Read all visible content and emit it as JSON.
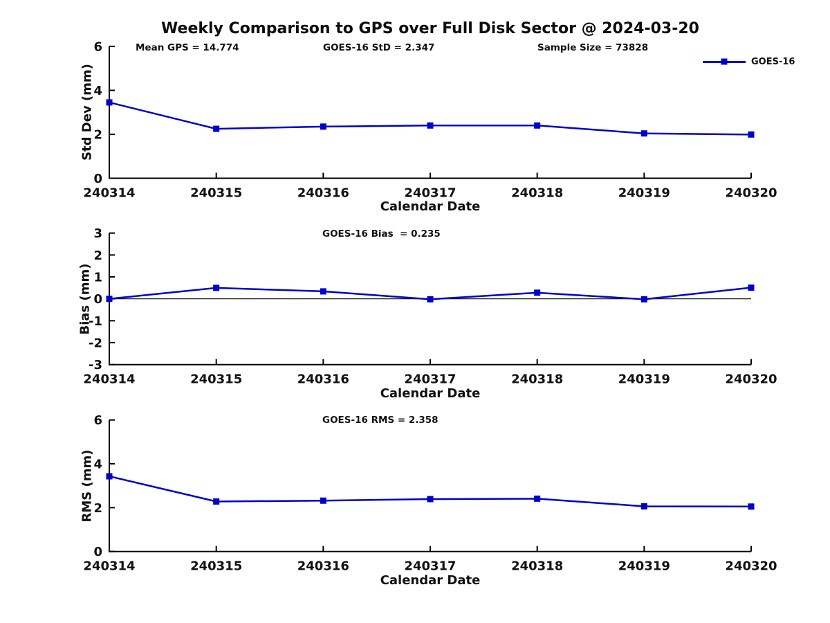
{
  "title": "Weekly Comparison to GPS over Full Disk Sector @ 2024-03-20",
  "annotations": {
    "mean_gps": "Mean GPS = 14.774",
    "goes16_std": "GOES-16 StD = 2.347",
    "sample_size": "Sample Size = 73828"
  },
  "legend": {
    "label": "GOES-16",
    "marker": "filled-square",
    "position": "top-right"
  },
  "colors": {
    "series": "#0000cc",
    "axis": "#000000",
    "text": "#111111",
    "background": "#ffffff"
  },
  "chart_data": [
    {
      "type": "line",
      "title": "",
      "xlabel": "Calendar Date",
      "ylabel": "Std Dev (mm)",
      "categories": [
        "240314",
        "240315",
        "240316",
        "240317",
        "240318",
        "240319",
        "240320"
      ],
      "series": [
        {
          "name": "GOES-16",
          "values": [
            3.45,
            2.25,
            2.35,
            2.4,
            2.4,
            2.04,
            1.99
          ]
        }
      ],
      "ylim": [
        0,
        6
      ],
      "yticks": [
        0,
        2,
        4,
        6
      ],
      "grid": false,
      "zero_line": false
    },
    {
      "type": "line",
      "title": "GOES-16 Bias  = 0.235",
      "xlabel": "Calendar Date",
      "ylabel": "Bias (mm)",
      "categories": [
        "240314",
        "240315",
        "240316",
        "240317",
        "240318",
        "240319",
        "240320"
      ],
      "series": [
        {
          "name": "GOES-16",
          "values": [
            0.0,
            0.5,
            0.34,
            -0.02,
            0.28,
            -0.02,
            0.51
          ]
        }
      ],
      "ylim": [
        -3,
        3
      ],
      "yticks": [
        -3,
        -2,
        -1,
        0,
        1,
        2,
        3
      ],
      "grid": false,
      "zero_line": true
    },
    {
      "type": "line",
      "title": "GOES-16 RMS = 2.358",
      "xlabel": "Calendar Date",
      "ylabel": "RMS (mm)",
      "categories": [
        "240314",
        "240315",
        "240316",
        "240317",
        "240318",
        "240319",
        "240320"
      ],
      "series": [
        {
          "name": "GOES-16",
          "values": [
            3.43,
            2.28,
            2.32,
            2.39,
            2.41,
            2.06,
            2.05
          ]
        }
      ],
      "ylim": [
        0,
        6
      ],
      "yticks": [
        0,
        2,
        4,
        6
      ],
      "grid": false,
      "zero_line": false
    }
  ]
}
